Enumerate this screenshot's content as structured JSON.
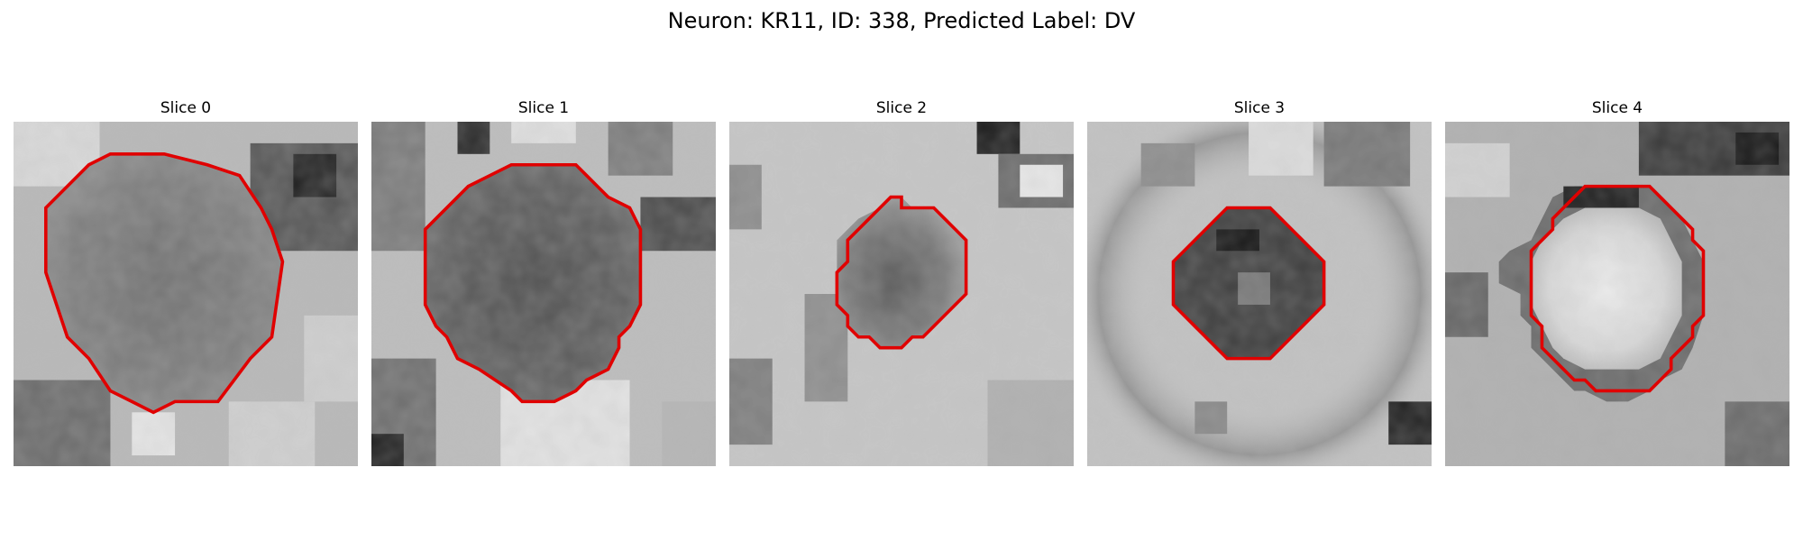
{
  "figure": {
    "title": "Neuron: KR11, ID: 338, Predicted Label: DV"
  },
  "slices": [
    {
      "label": "Slice 0",
      "outline_color": "#e00000"
    },
    {
      "label": "Slice 1",
      "outline_color": "#e00000"
    },
    {
      "label": "Slice 2",
      "outline_color": "#e00000"
    },
    {
      "label": "Slice 3",
      "outline_color": "#e00000"
    },
    {
      "label": "Slice 4",
      "outline_color": "#e00000"
    }
  ]
}
